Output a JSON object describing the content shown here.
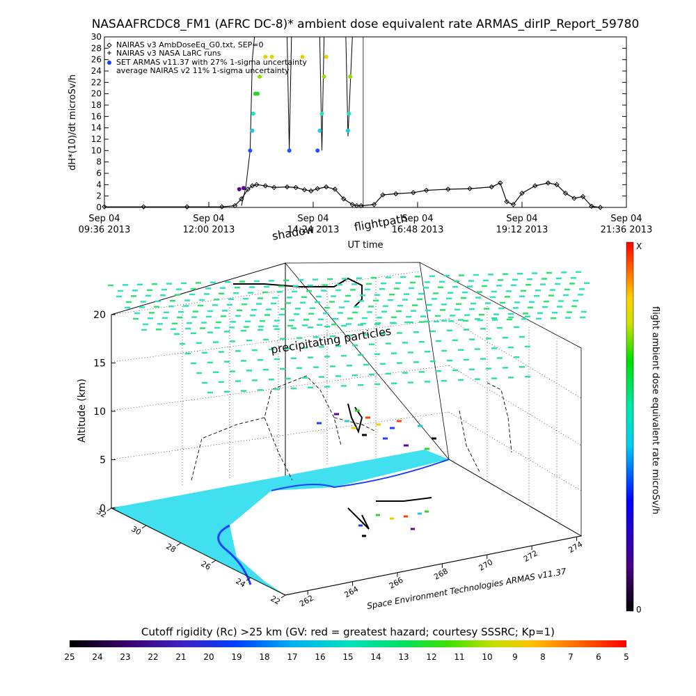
{
  "page": {
    "title": "NASAAFRCDC8_FM1 (AFRC DC-8)* ambient dose equivalent rate ARMAS_dirIP_Report_59780",
    "credit": "Space Environment Technologies ARMAS v11.37"
  },
  "chart_data": [
    {
      "type": "line",
      "ylabel": "dH*(10)/dt microSv/h",
      "xlabel": "UT time",
      "ylim": [
        0,
        30
      ],
      "yticks": [
        0,
        2,
        4,
        6,
        8,
        10,
        12,
        14,
        16,
        18,
        20,
        22,
        24,
        26,
        28,
        30
      ],
      "x_ticks": [
        {
          "line1": "Sep 04",
          "line2": "09:36 2013",
          "hour": 9.6
        },
        {
          "line1": "Sep 04",
          "line2": "12:00 2013",
          "hour": 12.0
        },
        {
          "line1": "Sep 04",
          "line2": "14:24 2013",
          "hour": 14.4
        },
        {
          "line1": "Sep 04",
          "line2": "16:48 2013",
          "hour": 16.8
        },
        {
          "line1": "Sep 04",
          "line2": "19:12 2013",
          "hour": 19.2
        },
        {
          "line1": "Sep 04",
          "line2": "21:36 2013",
          "hour": 21.6
        }
      ],
      "xlim_hours": [
        9.6,
        21.6
      ],
      "legend_position": "top-left",
      "legend": [
        {
          "label": "NAIRAS v3 AmbDoseEq_G0.txt, SEP=0",
          "marker": "diamond"
        },
        {
          "label": "NAIRAS v3 NASA LaRC runs",
          "marker": "plus"
        },
        {
          "label": "SET ARMAS v11.37 with 27% 1-sigma uncertainty",
          "marker": "dot-blue"
        },
        {
          "label": "average NAIRAS v2 11% 1-sigma uncertainty",
          "marker": "none"
        }
      ],
      "series": [
        {
          "name": "NAIRAS v3 AmbDoseEq_G0.txt, SEP=0",
          "x_hours": [
            9.6,
            10.5,
            11.5,
            12.3,
            12.6,
            12.75,
            12.9,
            13.0,
            13.1,
            13.3,
            13.5,
            13.8,
            14.0,
            14.2,
            14.35,
            14.5,
            14.7,
            14.9,
            15.1,
            15.3,
            15.4,
            15.5,
            15.8,
            16.0,
            16.3,
            16.7,
            17.0,
            17.5,
            18.0,
            18.5,
            18.7,
            18.85,
            19.0,
            19.2,
            19.5,
            19.8,
            20.0,
            20.2,
            20.4,
            20.6,
            20.8,
            21.0
          ],
          "values": [
            0.1,
            0.1,
            0.1,
            0.1,
            0.3,
            1.5,
            3.2,
            3.8,
            4.0,
            3.8,
            3.5,
            3.6,
            3.5,
            3.1,
            2.9,
            3.3,
            3.6,
            3.2,
            1.5,
            0.5,
            0.3,
            0.3,
            0.5,
            2.2,
            2.4,
            2.6,
            3.0,
            3.2,
            3.3,
            3.6,
            4.3,
            1.0,
            0.5,
            2.5,
            3.8,
            4.3,
            4.0,
            2.5,
            1.6,
            1.9,
            0.2,
            0.0
          ]
        },
        {
          "name": "NAIRAS v3 NASA LaRC runs",
          "x_hours": [
            12.75,
            12.85,
            12.95,
            13.0,
            13.05,
            13.8,
            13.85,
            13.9,
            14.55,
            14.6,
            14.65,
            15.15,
            15.2,
            15.3
          ],
          "values": [
            0.3,
            3.5,
            10,
            26,
            31,
            31,
            10,
            31,
            31,
            10,
            31,
            31,
            12.5,
            31
          ]
        },
        {
          "name": "SET ARMAS v11.37 with 27% 1-sigma uncertainty",
          "points": [
            {
              "hour": 12.7,
              "value": 3.2,
              "color": "#5a00a0"
            },
            {
              "hour": 12.8,
              "value": 3.4,
              "color": "#5a00a0"
            },
            {
              "hour": 12.95,
              "value": 10,
              "color": "#2050ff"
            },
            {
              "hour": 13.0,
              "value": 13.5,
              "color": "#20c8e0"
            },
            {
              "hour": 13.02,
              "value": 16.5,
              "color": "#20e0c0"
            },
            {
              "hour": 13.07,
              "value": 20,
              "color": "#30d030"
            },
            {
              "hour": 13.12,
              "value": 20,
              "color": "#30d030"
            },
            {
              "hour": 13.17,
              "value": 23,
              "color": "#90e000"
            },
            {
              "hour": 13.3,
              "value": 26.5,
              "color": "#e8d000"
            },
            {
              "hour": 13.45,
              "value": 26.5,
              "color": "#e8d000"
            },
            {
              "hour": 13.85,
              "value": 10,
              "color": "#2050ff"
            },
            {
              "hour": 14.15,
              "value": 26.5,
              "color": "#e8d000"
            },
            {
              "hour": 14.5,
              "value": 10,
              "color": "#2050ff"
            },
            {
              "hour": 14.55,
              "value": 13.5,
              "color": "#20c8e0"
            },
            {
              "hour": 14.6,
              "value": 16.5,
              "color": "#20e0c0"
            },
            {
              "hour": 14.65,
              "value": 23,
              "color": "#90e000"
            },
            {
              "hour": 14.7,
              "value": 26.5,
              "color": "#e8d000"
            },
            {
              "hour": 15.2,
              "value": 13.5,
              "color": "#20c8e0"
            },
            {
              "hour": 15.22,
              "value": 16.5,
              "color": "#20e0c0"
            },
            {
              "hour": 15.25,
              "value": 23,
              "color": "#90e000"
            }
          ]
        }
      ]
    },
    {
      "type": "scatter",
      "dimension": "3d",
      "zlabel": "Altitude (km)",
      "zticks": [
        0,
        5,
        10,
        15,
        20
      ],
      "lat_ticks": [
        22,
        24,
        26,
        28,
        30,
        32
      ],
      "lon_ticks": [
        262,
        264,
        266,
        268,
        270,
        272,
        274
      ],
      "annotations": [
        "flightpath",
        "shadow",
        "precipitating particles"
      ],
      "colorbar": {
        "label": "flight ambient dose equivalent rate microSv/h",
        "top": "X",
        "bottom": "0"
      },
      "surface_color": "#40e0f0"
    }
  ],
  "rigidity_bar": {
    "label": "Cutoff rigidity (Rc) >25 km (GV: red = greatest hazard; courtesy SSSRC; Kp=1)",
    "ticks": [
      "25",
      "24",
      "23",
      "22",
      "21",
      "20",
      "19",
      "18",
      "17",
      "16",
      "15",
      "14",
      "13",
      "12",
      "11",
      "10",
      "9",
      "8",
      "7",
      "6",
      "5"
    ]
  }
}
